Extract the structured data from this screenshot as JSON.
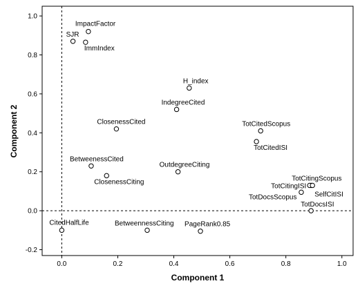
{
  "chart_data": {
    "type": "scatter",
    "xlabel": "Component 1",
    "ylabel": "Component 2",
    "xlim": [
      -0.07,
      1.04
    ],
    "ylim": [
      -0.23,
      1.05
    ],
    "xticks": [
      "0.0",
      "0.2",
      "0.4",
      "0.6",
      "0.8",
      "1.0"
    ],
    "yticks": [
      "-0.2",
      "0.0",
      "0.2",
      "0.4",
      "0.6",
      "0.8",
      "1.0"
    ],
    "reference_lines": {
      "x": 0,
      "y": 0
    },
    "points": [
      {
        "label": "ImpactFactor",
        "x": 0.095,
        "y": 0.92
      },
      {
        "label": "SJR",
        "x": 0.04,
        "y": 0.87
      },
      {
        "label": "ImmIndex",
        "x": 0.085,
        "y": 0.865
      },
      {
        "label": "H_index",
        "x": 0.455,
        "y": 0.63
      },
      {
        "label": "IndegreeCited",
        "x": 0.41,
        "y": 0.52
      },
      {
        "label": "ClosenessCited",
        "x": 0.195,
        "y": 0.42
      },
      {
        "label": "TotCitedScopus",
        "x": 0.71,
        "y": 0.41
      },
      {
        "label": "TotCitedISI",
        "x": 0.695,
        "y": 0.355
      },
      {
        "label": "BetweenessCited",
        "x": 0.105,
        "y": 0.23
      },
      {
        "label": "OutdegreeCiting",
        "x": 0.415,
        "y": 0.2
      },
      {
        "label": "ClosenessCiting",
        "x": 0.16,
        "y": 0.18
      },
      {
        "label": "TotCitingScopus",
        "x": 0.89,
        "y": 0.13
      },
      {
        "label": "TotCitingISI",
        "x": 0.885,
        "y": 0.13
      },
      {
        "label": "SelfCitISI",
        "x": 0.895,
        "y": 0.13
      },
      {
        "label": "TotDocsScopus",
        "x": 0.855,
        "y": 0.095
      },
      {
        "label": "TotDocsISI",
        "x": 0.89,
        "y": 0.0
      },
      {
        "label": "CitedHalfLife",
        "x": 0.0,
        "y": -0.1
      },
      {
        "label": "BetweennessCiting",
        "x": 0.305,
        "y": -0.1
      },
      {
        "label": "PageRank0.85",
        "x": 0.495,
        "y": -0.105
      }
    ]
  }
}
